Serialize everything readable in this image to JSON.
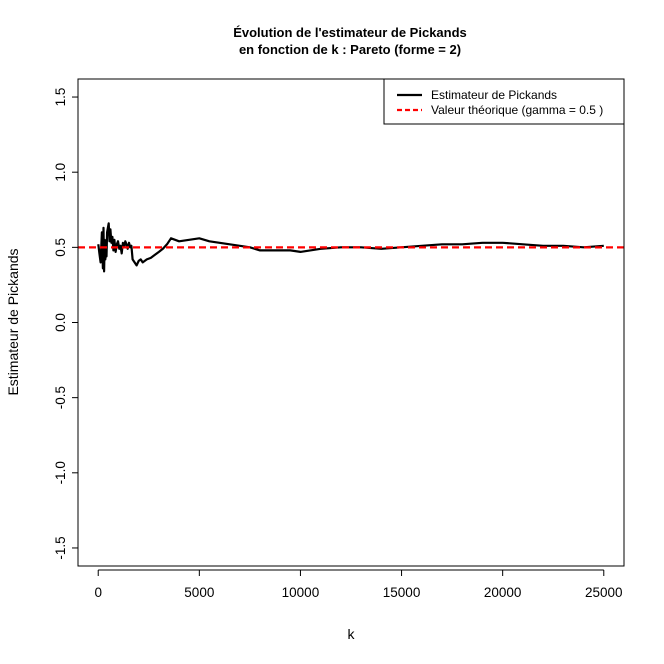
{
  "chart_data": {
    "type": "line",
    "title": "Évolution de l'estimateur de Pickands",
    "subtitle": "en fonction de k : Pareto (forme = 2)",
    "xlabel": "k",
    "ylabel": "Estimateur de Pickands",
    "xlim": [
      -1000,
      26000
    ],
    "ylim": [
      -1.62,
      1.62
    ],
    "xticks": [
      0,
      5000,
      10000,
      15000,
      20000,
      25000
    ],
    "xtick_labels": [
      "0",
      "5000",
      "10000",
      "15000",
      "20000",
      "25000"
    ],
    "yticks": [
      -1.5,
      -1.0,
      -0.5,
      0.0,
      0.5,
      1.0,
      1.5
    ],
    "ytick_labels": [
      "-1.5",
      "-1.0",
      "-0.5",
      "0.0",
      "0.5",
      "1.0",
      "1.5"
    ],
    "grid": false,
    "legend_position": "top-right",
    "series": [
      {
        "name": "Estimateur de Pickands",
        "color": "#000000",
        "style": "solid",
        "x": [
          4,
          60,
          120,
          180,
          230,
          260,
          290,
          320,
          350,
          380,
          410,
          440,
          480,
          520,
          560,
          600,
          650,
          700,
          750,
          800,
          860,
          920,
          980,
          1040,
          1100,
          1160,
          1220,
          1280,
          1340,
          1400,
          1460,
          1520,
          1580,
          1640,
          1700,
          1800,
          1900,
          2000,
          2100,
          2200,
          2400,
          2600,
          2800,
          3000,
          3200,
          3400,
          3600,
          3800,
          4000,
          4500,
          5000,
          5500,
          6000,
          6500,
          7000,
          7500,
          8000,
          8500,
          9000,
          9500,
          10000,
          11000,
          12000,
          13000,
          14000,
          15000,
          16000,
          17000,
          18000,
          19000,
          20000,
          21000,
          22000,
          23000,
          24000,
          25000
        ],
        "y": [
          0.52,
          0.46,
          0.4,
          0.6,
          0.36,
          0.63,
          0.34,
          0.55,
          0.42,
          0.47,
          0.44,
          0.6,
          0.63,
          0.66,
          0.54,
          0.62,
          0.53,
          0.57,
          0.48,
          0.55,
          0.47,
          0.52,
          0.54,
          0.49,
          0.51,
          0.46,
          0.53,
          0.5,
          0.54,
          0.52,
          0.49,
          0.53,
          0.5,
          0.51,
          0.42,
          0.4,
          0.38,
          0.41,
          0.42,
          0.4,
          0.42,
          0.43,
          0.45,
          0.47,
          0.49,
          0.52,
          0.56,
          0.55,
          0.54,
          0.55,
          0.56,
          0.54,
          0.53,
          0.52,
          0.51,
          0.5,
          0.48,
          0.48,
          0.48,
          0.48,
          0.47,
          0.49,
          0.5,
          0.5,
          0.49,
          0.5,
          0.51,
          0.52,
          0.52,
          0.53,
          0.53,
          0.52,
          0.51,
          0.51,
          0.5,
          0.51
        ]
      },
      {
        "name": "Valeur théorique (gamma = 0.5 )",
        "color": "#ff0000",
        "style": "dashed",
        "hline": 0.5
      }
    ]
  }
}
